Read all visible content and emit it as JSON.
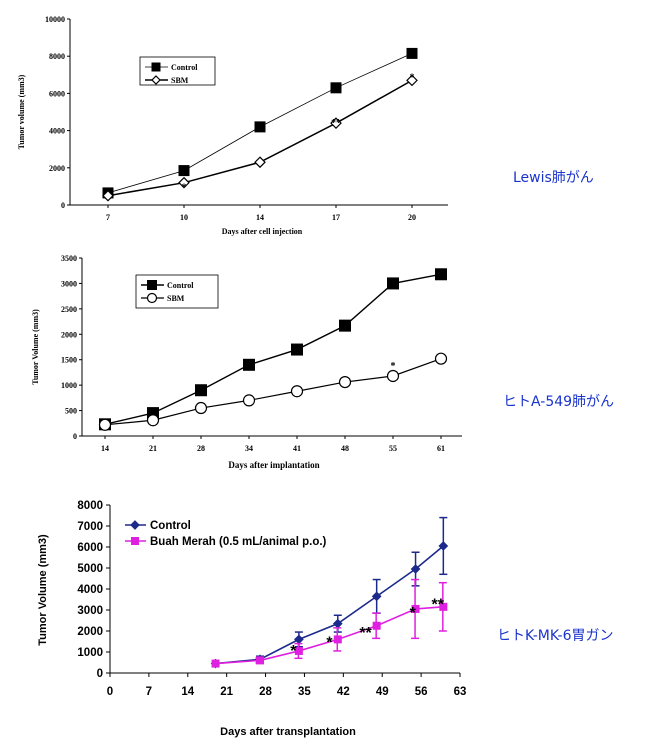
{
  "chart_data": [
    {
      "type": "line",
      "side_label": "Lewis肺がん",
      "xlabel": "Days after cell injection",
      "ylabel": "Tumor volume (mm3)",
      "categories": [
        "7",
        "10",
        "14",
        "17",
        "20"
      ],
      "yticks": [
        "0",
        "2000",
        "4000",
        "6000",
        "8000",
        "10000"
      ],
      "ylim": [
        0,
        10000
      ],
      "grid": false,
      "legend_position": "top-left",
      "series": [
        {
          "name": "Control",
          "marker": "square",
          "values": [
            650,
            1850,
            4200,
            6300,
            8150
          ]
        },
        {
          "name": "SBM",
          "marker": "diamond",
          "values": [
            500,
            1200,
            2300,
            4400,
            6700
          ]
        }
      ],
      "annotations": [
        {
          "text": "*",
          "category_index": 1,
          "value": 1000
        },
        {
          "text": "**",
          "category_index": 3,
          "value": 4450
        },
        {
          "text": "*",
          "category_index": 4,
          "value": 6900
        }
      ]
    },
    {
      "type": "line",
      "side_label": "ヒトA-549肺がん",
      "xlabel": "Days after implantation",
      "ylabel": "Tumor Volume (mm3)",
      "categories": [
        "14",
        "21",
        "28",
        "34",
        "41",
        "48",
        "55",
        "61"
      ],
      "yticks": [
        "0",
        "500",
        "1000",
        "1500",
        "2000",
        "2500",
        "3000",
        "3500"
      ],
      "ylim": [
        0,
        3500
      ],
      "grid": false,
      "legend_position": "top-left",
      "series": [
        {
          "name": "Control",
          "marker": "square",
          "values": [
            230,
            450,
            900,
            1400,
            1700,
            2170,
            3000,
            3180
          ]
        },
        {
          "name": "SBM",
          "marker": "circle",
          "values": [
            220,
            310,
            550,
            700,
            880,
            1060,
            1180,
            1520
          ]
        }
      ],
      "annotations": [
        {
          "text": "*",
          "category_index": 6,
          "value": 1400
        }
      ]
    },
    {
      "type": "line",
      "side_label": "ヒトK-MK-6胃ガン",
      "xlabel": "Days after transplantation",
      "ylabel": "Tumor Volume (mm3)",
      "xticks": [
        "0",
        "7",
        "14",
        "21",
        "28",
        "35",
        "42",
        "49",
        "56",
        "63"
      ],
      "xlim": [
        0,
        63
      ],
      "yticks": [
        "0",
        "1000",
        "2000",
        "3000",
        "4000",
        "5000",
        "6000",
        "7000",
        "8000"
      ],
      "ylim": [
        0,
        8000
      ],
      "grid": false,
      "legend_position": "top-left",
      "series": [
        {
          "name": "Control",
          "color": "#1c2a8c",
          "marker": "diamond",
          "x": [
            19,
            27,
            34,
            41,
            48,
            55,
            60
          ],
          "values": [
            450,
            650,
            1600,
            2350,
            3650,
            4950,
            6050
          ],
          "error": [
            0,
            150,
            350,
            400,
            800,
            800,
            1350
          ]
        },
        {
          "name": "Buah Merah (0.5 mL/animal p.o.)",
          "color": "#e020e0",
          "marker": "square",
          "x": [
            19,
            27,
            34,
            41,
            48,
            55,
            60
          ],
          "values": [
            450,
            600,
            1050,
            1600,
            2250,
            3050,
            3150
          ],
          "error": [
            0,
            120,
            350,
            550,
            600,
            1400,
            1150
          ]
        }
      ],
      "annotations": [
        {
          "text": "*",
          "x": 33,
          "value": 1100
        },
        {
          "text": "*",
          "x": 39.5,
          "value": 1500
        },
        {
          "text": "**",
          "x": 46,
          "value": 1950
        },
        {
          "text": "*",
          "x": 54.5,
          "value": 2900
        },
        {
          "text": "**",
          "x": 59,
          "value": 3300
        }
      ]
    }
  ]
}
